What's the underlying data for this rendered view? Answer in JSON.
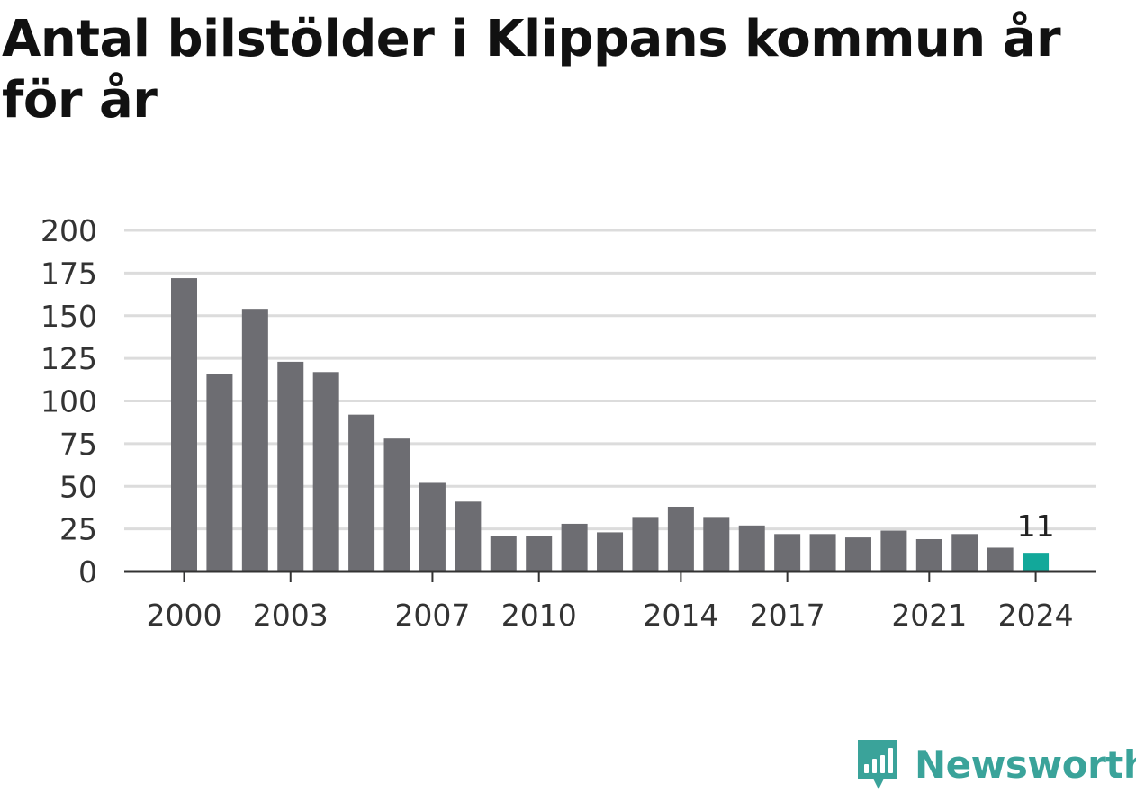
{
  "header": {
    "title": "Antal bilstölder i Klippans kommun år för år"
  },
  "colors": {
    "bar": "#6d6d72",
    "highlight": "#12a89a",
    "grid": "#dcdcdc",
    "axis": "#333333",
    "brand": "#3aa39a"
  },
  "brand": {
    "name": "Newsworthy",
    "icon": "chart-speech-bubble-icon"
  },
  "chart_data": {
    "type": "bar",
    "title": "Antal bilstölder i Klippans kommun år för år",
    "xlabel": "",
    "ylabel": "",
    "categories": [
      2000,
      2001,
      2002,
      2003,
      2004,
      2005,
      2006,
      2007,
      2008,
      2009,
      2010,
      2011,
      2012,
      2013,
      2014,
      2015,
      2016,
      2017,
      2018,
      2019,
      2020,
      2021,
      2022,
      2023,
      2024
    ],
    "values": [
      172,
      116,
      154,
      123,
      117,
      92,
      78,
      52,
      41,
      21,
      21,
      28,
      23,
      32,
      38,
      32,
      27,
      22,
      22,
      20,
      24,
      19,
      22,
      14,
      11
    ],
    "x_tick_labels": [
      "2000",
      "2003",
      "2007",
      "2010",
      "2014",
      "2017",
      "2021",
      "2024"
    ],
    "y_ticks": [
      0,
      25,
      50,
      75,
      100,
      125,
      150,
      175,
      200
    ],
    "ylim": [
      0,
      200
    ],
    "grid": true,
    "highlight_category": 2024,
    "annotations": [
      {
        "category": 2024,
        "text": "11"
      }
    ]
  }
}
